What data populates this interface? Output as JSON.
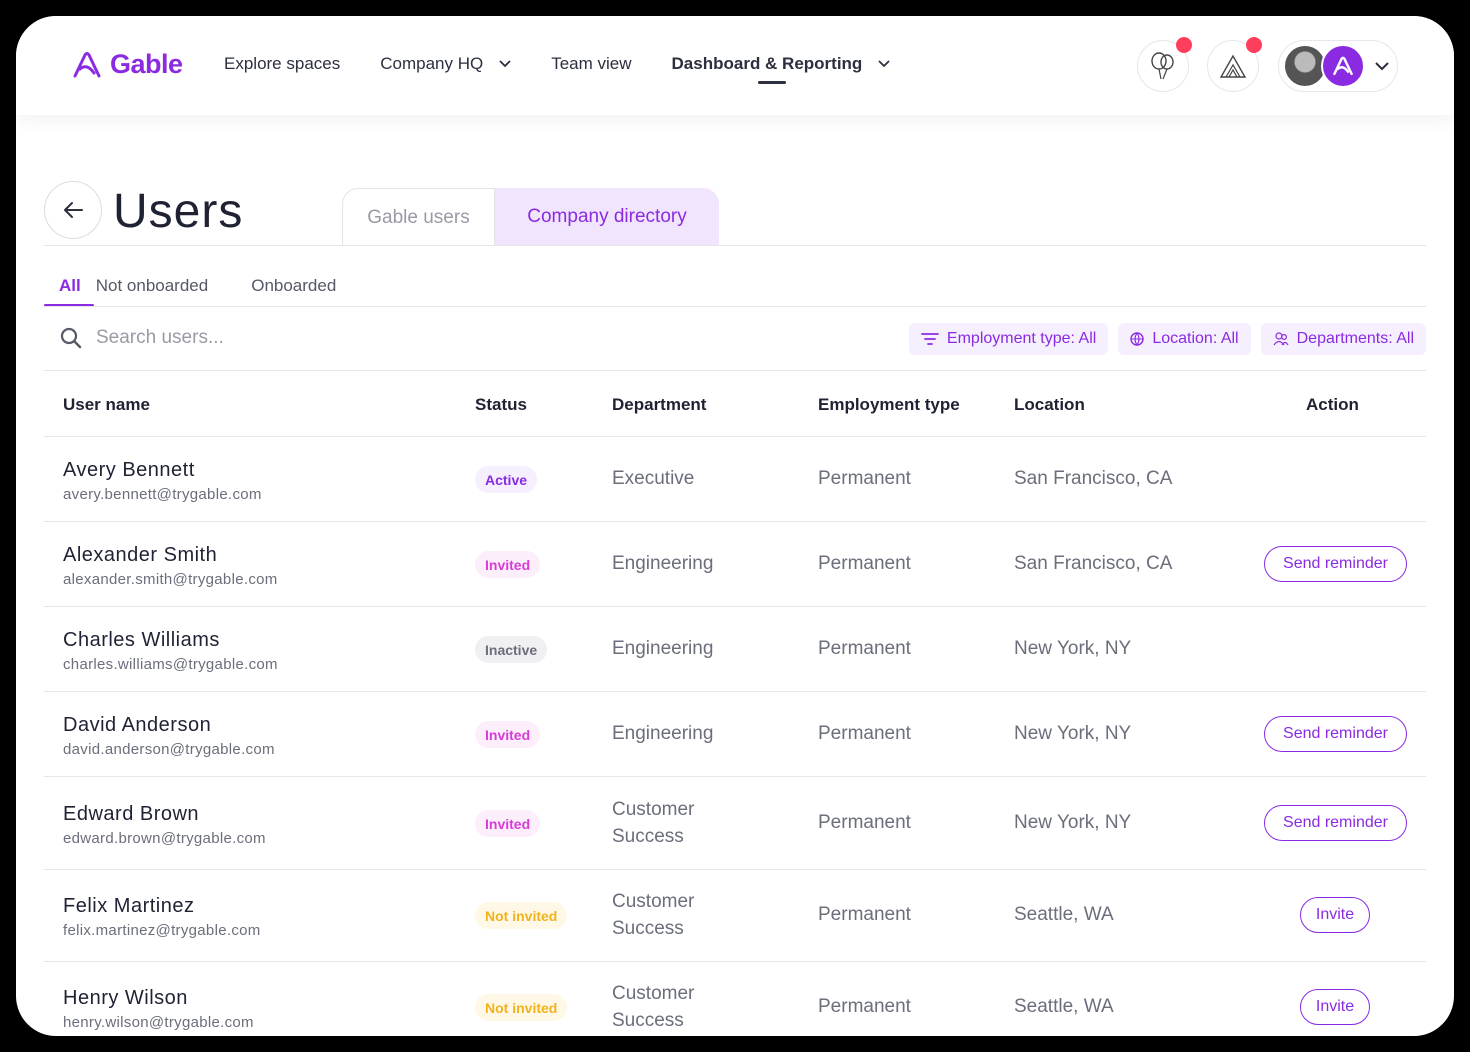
{
  "header": {
    "brand": "Gable",
    "nav": [
      {
        "label": "Explore spaces"
      },
      {
        "label": "Company HQ"
      },
      {
        "label": "Team view"
      },
      {
        "label": "Dashboard & Reporting"
      }
    ]
  },
  "page": {
    "title": "Users",
    "tabs": [
      {
        "label": "Gable users"
      },
      {
        "label": "Company directory"
      }
    ],
    "subtabs": [
      {
        "label": "All"
      },
      {
        "label": "Not onboarded"
      },
      {
        "label": "Onboarded"
      }
    ],
    "search_placeholder": "Search users...",
    "filters": [
      {
        "label": "Employment type: All"
      },
      {
        "label": "Location: All"
      },
      {
        "label": "Departments: All"
      }
    ]
  },
  "table": {
    "columns": [
      "User name",
      "Status",
      "Department",
      "Employment type",
      "Location",
      "Action"
    ],
    "rows": [
      {
        "name": "Avery Bennett",
        "email": "avery.bennett@trygable.com",
        "status": "Active",
        "department": "Executive",
        "employment": "Permanent",
        "location": "San Francisco, CA",
        "action": ""
      },
      {
        "name": "Alexander Smith",
        "email": "alexander.smith@trygable.com",
        "status": "Invited",
        "department": "Engineering",
        "employment": "Permanent",
        "location": "San Francisco, CA",
        "action": "Send reminder"
      },
      {
        "name": "Charles Williams",
        "email": "charles.williams@trygable.com",
        "status": "Inactive",
        "department": "Engineering",
        "employment": "Permanent",
        "location": "New York, NY",
        "action": ""
      },
      {
        "name": "David Anderson",
        "email": "david.anderson@trygable.com",
        "status": "Invited",
        "department": "Engineering",
        "employment": "Permanent",
        "location": "New York, NY",
        "action": "Send reminder"
      },
      {
        "name": "Edward Brown",
        "email": "edward.brown@trygable.com",
        "status": "Invited",
        "department": "Customer Success",
        "employment": "Permanent",
        "location": "New York, NY",
        "action": "Send reminder"
      },
      {
        "name": "Felix Martinez",
        "email": "felix.martinez@trygable.com",
        "status": "Not invited",
        "department": "Customer Success",
        "employment": "Permanent",
        "location": "Seattle, WA",
        "action": "Invite"
      },
      {
        "name": "Henry Wilson",
        "email": "henry.wilson@trygable.com",
        "status": "Not invited",
        "department": "Customer Success",
        "employment": "Permanent",
        "location": "Seattle, WA",
        "action": "Invite"
      }
    ]
  },
  "colors": {
    "accent": "#8a2be2",
    "notification": "#ff3e5b"
  }
}
